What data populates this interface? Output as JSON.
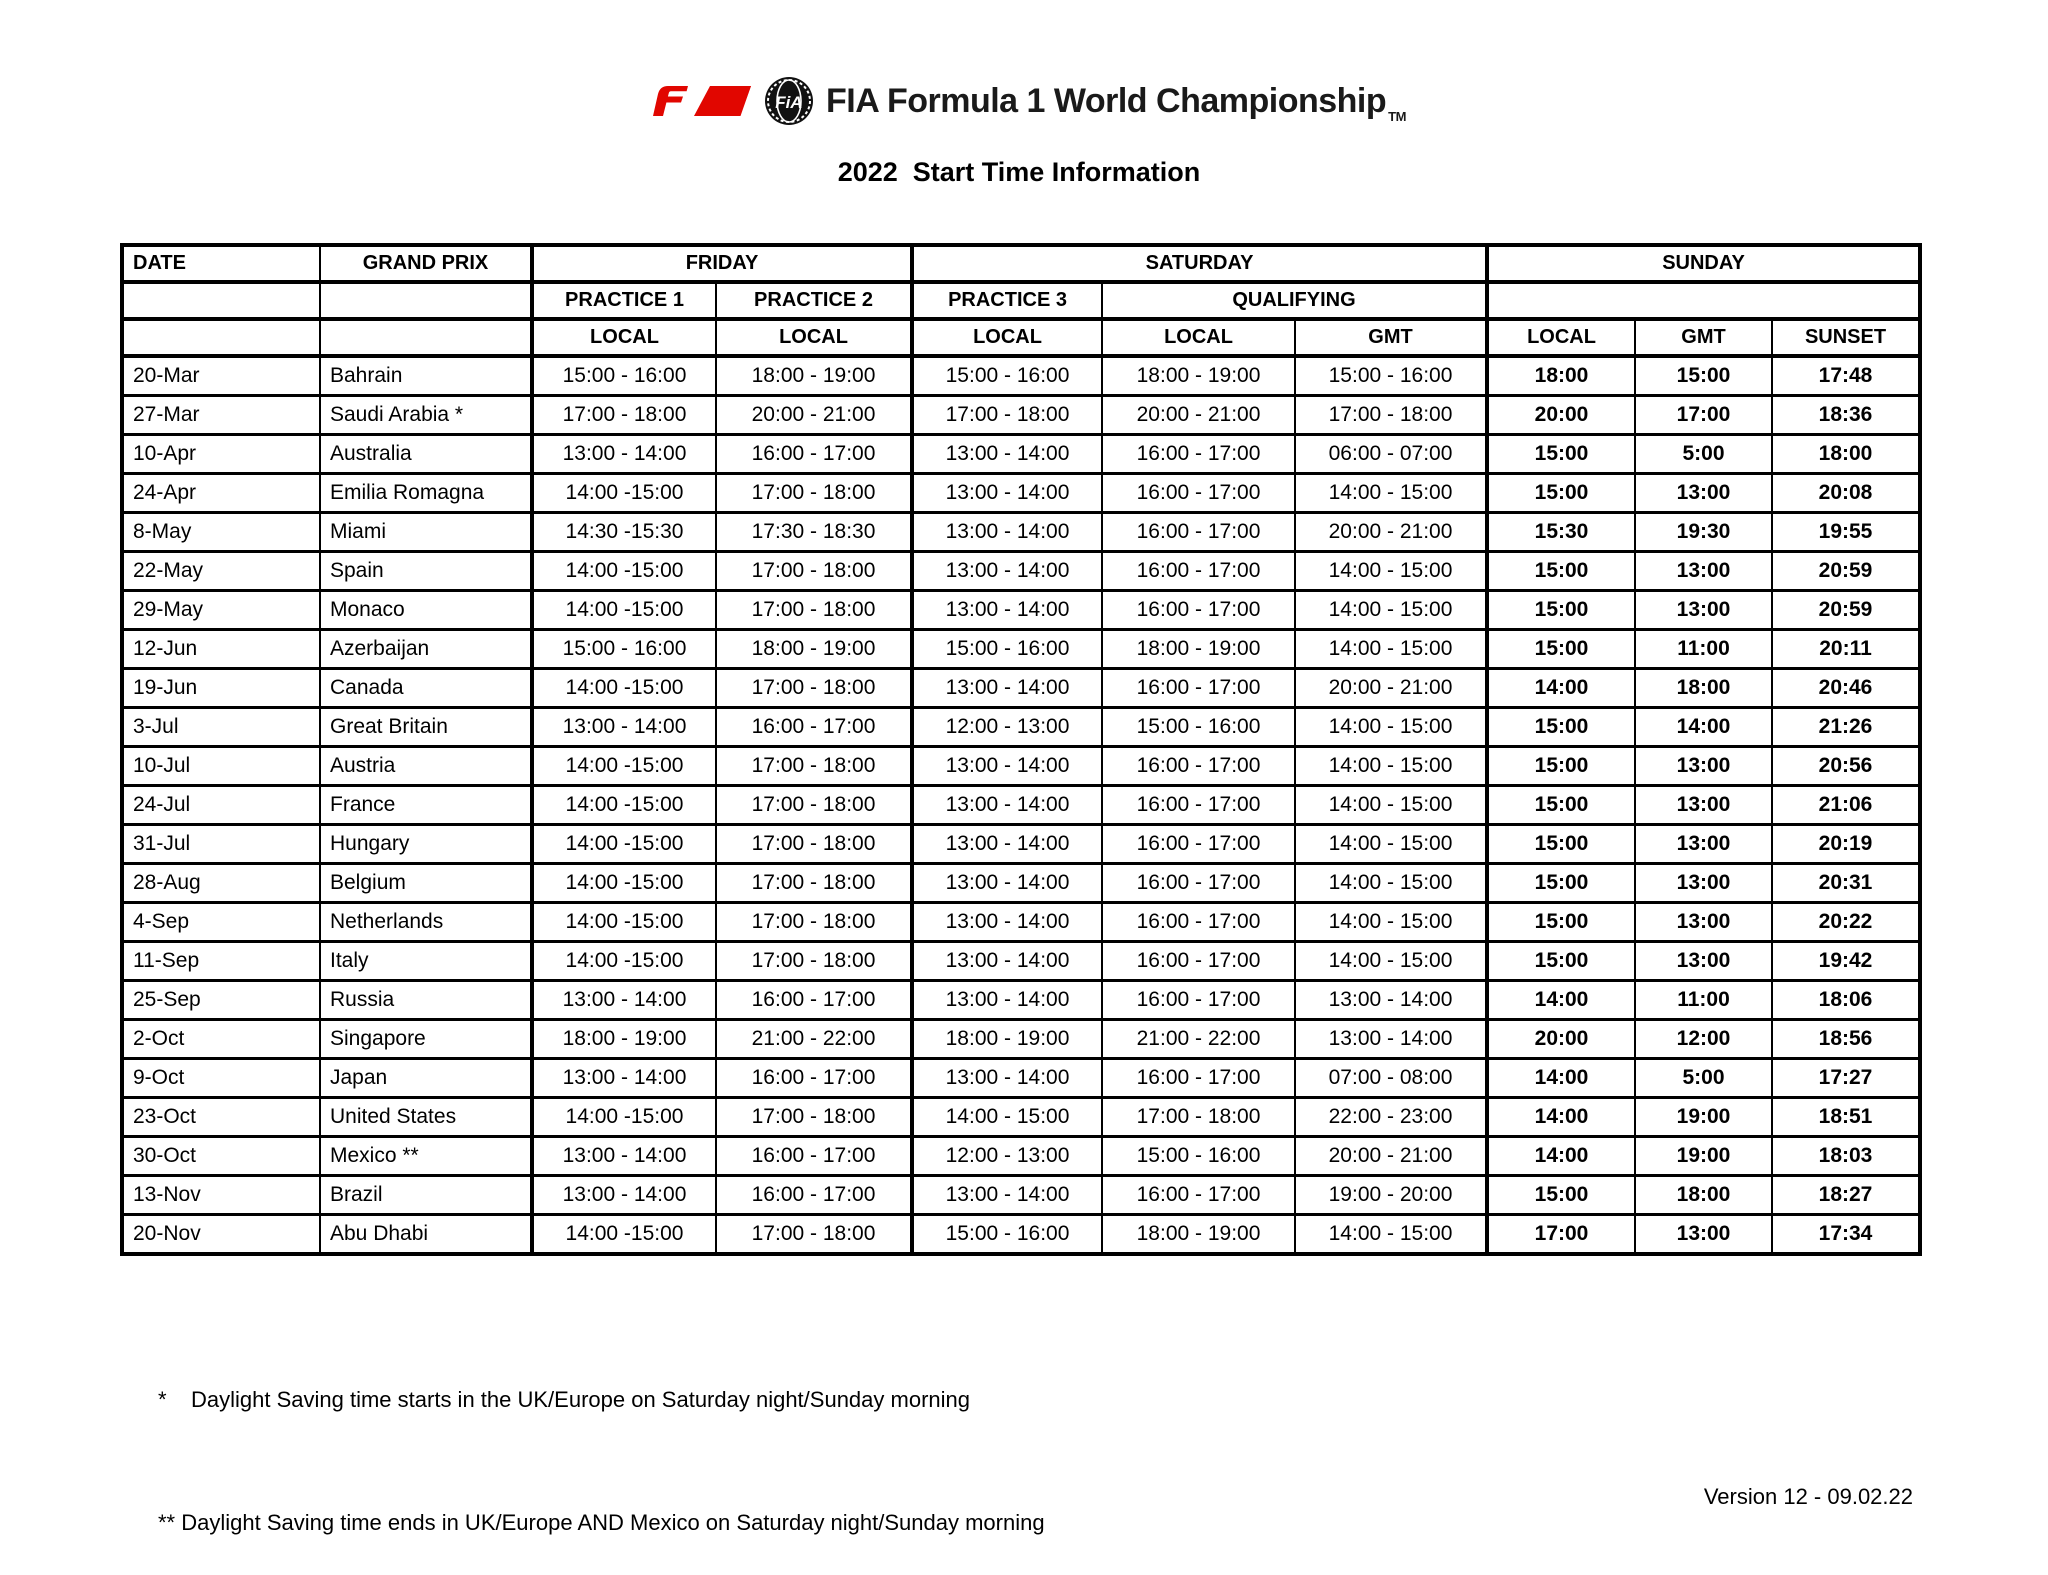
{
  "header": {
    "f1_logo": "F1",
    "fia_emblem_text": "FiA",
    "championship_title": "FIA Formula 1 World Championship",
    "trademark": "TM",
    "page_title": "2022  Start Time Information"
  },
  "colors": {
    "f1_red": "#e10600",
    "text": "#000000"
  },
  "table": {
    "day_headers": [
      "DATE",
      "GRAND PRIX",
      "FRIDAY",
      "SATURDAY",
      "SUNDAY"
    ],
    "session_headers": [
      "PRACTICE 1",
      "PRACTICE 2",
      "PRACTICE 3",
      "QUALIFYING"
    ],
    "tz_headers": [
      "LOCAL",
      "LOCAL",
      "LOCAL",
      "LOCAL",
      "GMT",
      "LOCAL",
      "GMT",
      "SUNSET"
    ],
    "rows": [
      {
        "date": "20-Mar",
        "grand_prix": "Bahrain",
        "p1_local": "15:00 - 16:00",
        "p2_local": "18:00 - 19:00",
        "p3_local": "15:00 - 16:00",
        "quali_local": "18:00 - 19:00",
        "quali_gmt": "15:00 - 16:00",
        "race_local": "18:00",
        "race_gmt": "15:00",
        "sunset": "17:48"
      },
      {
        "date": "27-Mar",
        "grand_prix": "Saudi Arabia *",
        "p1_local": "17:00 - 18:00",
        "p2_local": "20:00 - 21:00",
        "p3_local": "17:00 - 18:00",
        "quali_local": "20:00 - 21:00",
        "quali_gmt": "17:00 - 18:00",
        "race_local": "20:00",
        "race_gmt": "17:00",
        "sunset": "18:36"
      },
      {
        "date": "10-Apr",
        "grand_prix": "Australia",
        "p1_local": "13:00 - 14:00",
        "p2_local": "16:00 - 17:00",
        "p3_local": "13:00 - 14:00",
        "quali_local": "16:00 - 17:00",
        "quali_gmt": "06:00 - 07:00",
        "race_local": "15:00",
        "race_gmt": "5:00",
        "sunset": "18:00"
      },
      {
        "date": "24-Apr",
        "grand_prix": "Emilia Romagna",
        "p1_local": "14:00 -15:00",
        "p2_local": "17:00 - 18:00",
        "p3_local": "13:00 - 14:00",
        "quali_local": "16:00 - 17:00",
        "quali_gmt": "14:00 - 15:00",
        "race_local": "15:00",
        "race_gmt": "13:00",
        "sunset": "20:08"
      },
      {
        "date": "8-May",
        "grand_prix": "Miami",
        "p1_local": "14:30 -15:30",
        "p2_local": "17:30 - 18:30",
        "p3_local": "13:00 - 14:00",
        "quali_local": "16:00 - 17:00",
        "quali_gmt": "20:00 - 21:00",
        "race_local": "15:30",
        "race_gmt": "19:30",
        "sunset": "19:55"
      },
      {
        "date": "22-May",
        "grand_prix": "Spain",
        "p1_local": "14:00 -15:00",
        "p2_local": "17:00 - 18:00",
        "p3_local": "13:00 - 14:00",
        "quali_local": "16:00 - 17:00",
        "quali_gmt": "14:00 - 15:00",
        "race_local": "15:00",
        "race_gmt": "13:00",
        "sunset": "20:59"
      },
      {
        "date": "29-May",
        "grand_prix": "Monaco",
        "p1_local": "14:00 -15:00",
        "p2_local": "17:00 - 18:00",
        "p3_local": "13:00 - 14:00",
        "quali_local": "16:00 - 17:00",
        "quali_gmt": "14:00 - 15:00",
        "race_local": "15:00",
        "race_gmt": "13:00",
        "sunset": "20:59"
      },
      {
        "date": "12-Jun",
        "grand_prix": "Azerbaijan",
        "p1_local": "15:00 - 16:00",
        "p2_local": "18:00 - 19:00",
        "p3_local": "15:00 - 16:00",
        "quali_local": "18:00 - 19:00",
        "quali_gmt": "14:00 - 15:00",
        "race_local": "15:00",
        "race_gmt": "11:00",
        "sunset": "20:11"
      },
      {
        "date": "19-Jun",
        "grand_prix": "Canada",
        "p1_local": "14:00 -15:00",
        "p2_local": "17:00 - 18:00",
        "p3_local": "13:00 - 14:00",
        "quali_local": "16:00 - 17:00",
        "quali_gmt": "20:00 - 21:00",
        "race_local": "14:00",
        "race_gmt": "18:00",
        "sunset": "20:46"
      },
      {
        "date": "3-Jul",
        "grand_prix": "Great Britain",
        "p1_local": "13:00 - 14:00",
        "p2_local": "16:00 - 17:00",
        "p3_local": "12:00 - 13:00",
        "quali_local": "15:00 - 16:00",
        "quali_gmt": "14:00 - 15:00",
        "race_local": "15:00",
        "race_gmt": "14:00",
        "sunset": "21:26"
      },
      {
        "date": "10-Jul",
        "grand_prix": "Austria",
        "p1_local": "14:00 -15:00",
        "p2_local": "17:00 - 18:00",
        "p3_local": "13:00 - 14:00",
        "quali_local": "16:00 - 17:00",
        "quali_gmt": "14:00 - 15:00",
        "race_local": "15:00",
        "race_gmt": "13:00",
        "sunset": "20:56"
      },
      {
        "date": "24-Jul",
        "grand_prix": "France",
        "p1_local": "14:00 -15:00",
        "p2_local": "17:00 - 18:00",
        "p3_local": "13:00 - 14:00",
        "quali_local": "16:00 - 17:00",
        "quali_gmt": "14:00 - 15:00",
        "race_local": "15:00",
        "race_gmt": "13:00",
        "sunset": "21:06"
      },
      {
        "date": "31-Jul",
        "grand_prix": "Hungary",
        "p1_local": "14:00 -15:00",
        "p2_local": "17:00 - 18:00",
        "p3_local": "13:00 - 14:00",
        "quali_local": "16:00 - 17:00",
        "quali_gmt": "14:00 - 15:00",
        "race_local": "15:00",
        "race_gmt": "13:00",
        "sunset": "20:19"
      },
      {
        "date": "28-Aug",
        "grand_prix": "Belgium",
        "p1_local": "14:00 -15:00",
        "p2_local": "17:00 - 18:00",
        "p3_local": "13:00 - 14:00",
        "quali_local": "16:00 - 17:00",
        "quali_gmt": "14:00 - 15:00",
        "race_local": "15:00",
        "race_gmt": "13:00",
        "sunset": "20:31"
      },
      {
        "date": "4-Sep",
        "grand_prix": "Netherlands",
        "p1_local": "14:00 -15:00",
        "p2_local": "17:00 - 18:00",
        "p3_local": "13:00 - 14:00",
        "quali_local": "16:00 - 17:00",
        "quali_gmt": "14:00 - 15:00",
        "race_local": "15:00",
        "race_gmt": "13:00",
        "sunset": "20:22"
      },
      {
        "date": "11-Sep",
        "grand_prix": "Italy",
        "p1_local": "14:00 -15:00",
        "p2_local": "17:00 - 18:00",
        "p3_local": "13:00 - 14:00",
        "quali_local": "16:00 - 17:00",
        "quali_gmt": "14:00 - 15:00",
        "race_local": "15:00",
        "race_gmt": "13:00",
        "sunset": "19:42"
      },
      {
        "date": "25-Sep",
        "grand_prix": "Russia",
        "p1_local": "13:00 - 14:00",
        "p2_local": "16:00 - 17:00",
        "p3_local": "13:00 - 14:00",
        "quali_local": "16:00 - 17:00",
        "quali_gmt": "13:00 - 14:00",
        "race_local": "14:00",
        "race_gmt": "11:00",
        "sunset": "18:06"
      },
      {
        "date": "2-Oct",
        "grand_prix": "Singapore",
        "p1_local": "18:00 - 19:00",
        "p2_local": "21:00 - 22:00",
        "p3_local": "18:00 - 19:00",
        "quali_local": "21:00 - 22:00",
        "quali_gmt": "13:00 - 14:00",
        "race_local": "20:00",
        "race_gmt": "12:00",
        "sunset": "18:56"
      },
      {
        "date": "9-Oct",
        "grand_prix": "Japan",
        "p1_local": "13:00 - 14:00",
        "p2_local": "16:00 - 17:00",
        "p3_local": "13:00 - 14:00",
        "quali_local": "16:00 - 17:00",
        "quali_gmt": "07:00 - 08:00",
        "race_local": "14:00",
        "race_gmt": "5:00",
        "sunset": "17:27"
      },
      {
        "date": "23-Oct",
        "grand_prix": "United States",
        "p1_local": "14:00 -15:00",
        "p2_local": "17:00 - 18:00",
        "p3_local": "14:00 - 15:00",
        "quali_local": "17:00 - 18:00",
        "quali_gmt": "22:00 - 23:00",
        "race_local": "14:00",
        "race_gmt": "19:00",
        "sunset": "18:51"
      },
      {
        "date": "30-Oct",
        "grand_prix": "Mexico **",
        "p1_local": "13:00 - 14:00",
        "p2_local": "16:00 - 17:00",
        "p3_local": "12:00 - 13:00",
        "quali_local": "15:00 - 16:00",
        "quali_gmt": "20:00 - 21:00",
        "race_local": "14:00",
        "race_gmt": "19:00",
        "sunset": "18:03"
      },
      {
        "date": "13-Nov",
        "grand_prix": "Brazil",
        "p1_local": "13:00 - 14:00",
        "p2_local": "16:00 - 17:00",
        "p3_local": "13:00 - 14:00",
        "quali_local": "16:00 - 17:00",
        "quali_gmt": "19:00 - 20:00",
        "race_local": "15:00",
        "race_gmt": "18:00",
        "sunset": "18:27"
      },
      {
        "date": "20-Nov",
        "grand_prix": "Abu Dhabi",
        "p1_local": "14:00 -15:00",
        "p2_local": "17:00 - 18:00",
        "p3_local": "15:00 - 16:00",
        "quali_local": "18:00 - 19:00",
        "quali_gmt": "14:00 - 15:00",
        "race_local": "17:00",
        "race_gmt": "13:00",
        "sunset": "17:34"
      }
    ]
  },
  "footnotes": [
    "*    Daylight Saving time starts in the UK/Europe on Saturday night/Sunday morning",
    "** Daylight Saving time ends in UK/Europe AND Mexico on Saturday night/Sunday morning"
  ],
  "version": "Version 12 - 09.02.22"
}
